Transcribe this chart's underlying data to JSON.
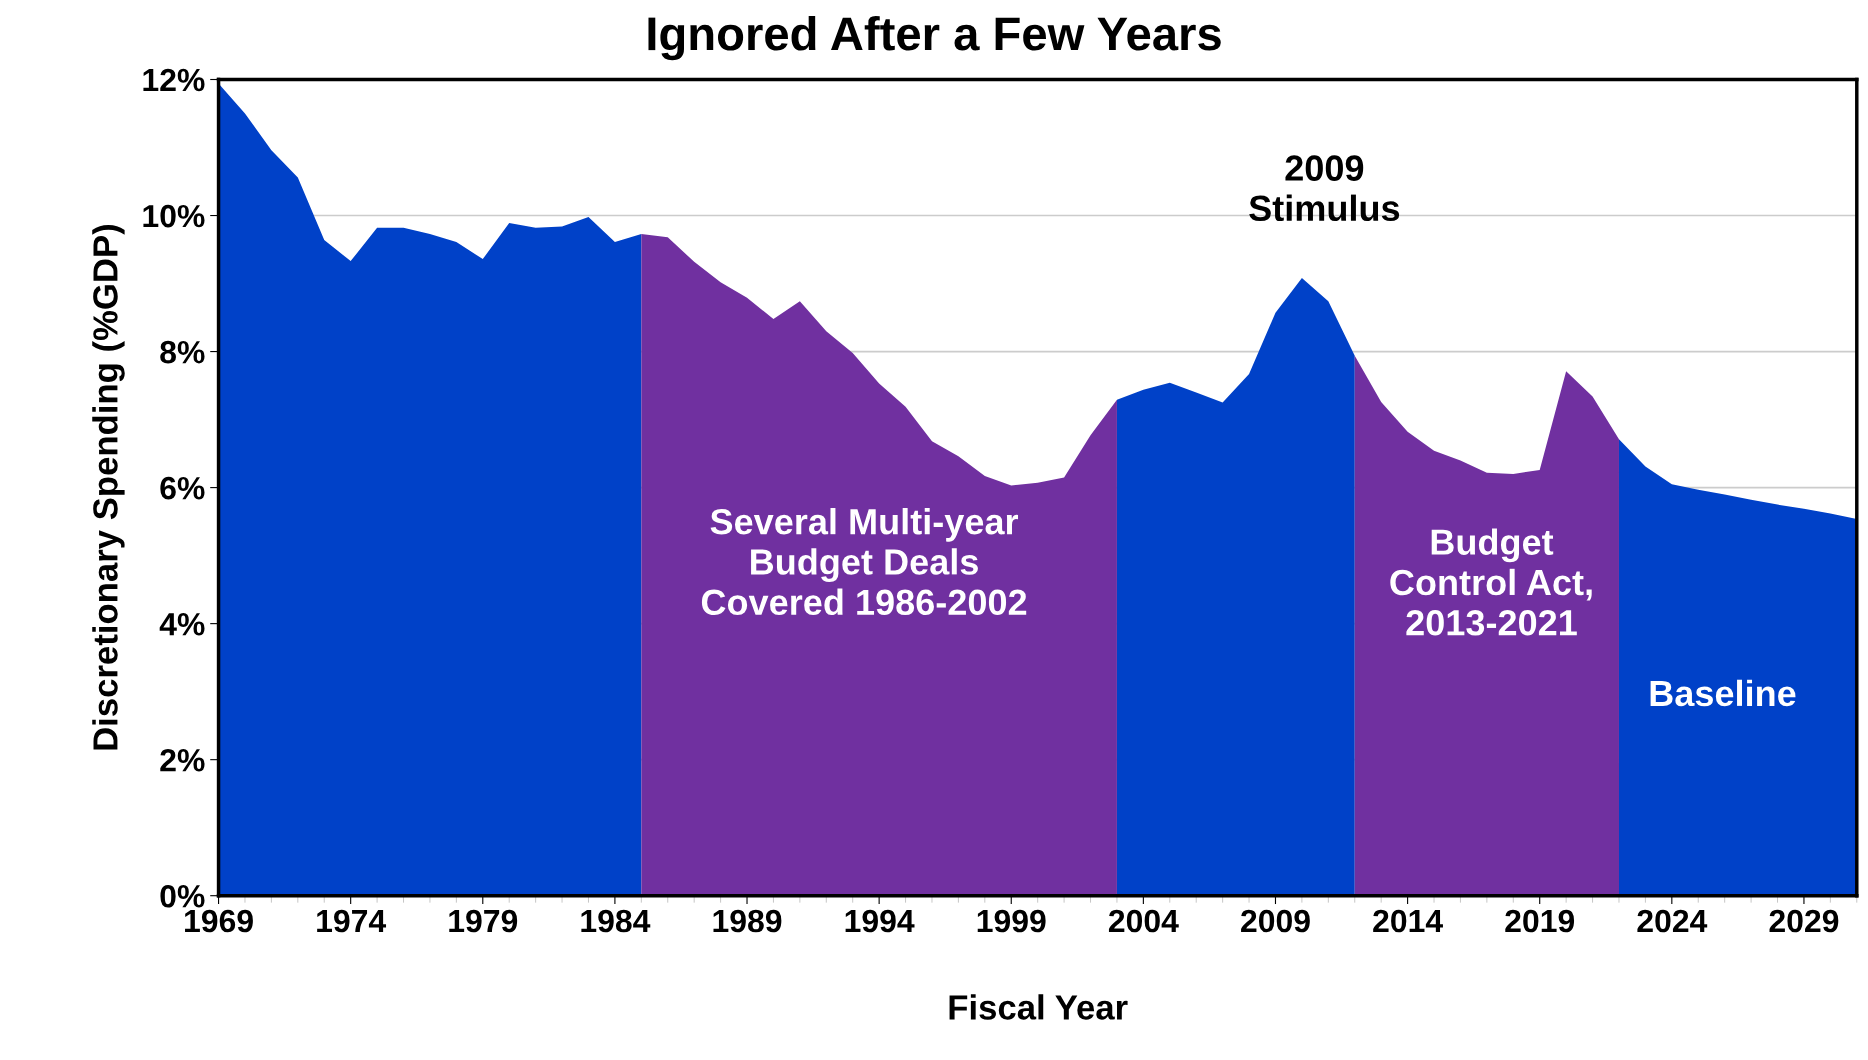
{
  "chart_data": {
    "type": "area",
    "title": "Ignored After a Few Years",
    "xlabel": "Fiscal Year",
    "ylabel": "Discretionary Spending (%GDP)",
    "x": [
      1969,
      1970,
      1971,
      1972,
      1973,
      1974,
      1975,
      1976,
      1977,
      1978,
      1979,
      1980,
      1981,
      1982,
      1983,
      1984,
      1985,
      1986,
      1987,
      1988,
      1989,
      1990,
      1991,
      1992,
      1993,
      1994,
      1995,
      1996,
      1997,
      1998,
      1999,
      2000,
      2001,
      2002,
      2003,
      2004,
      2005,
      2006,
      2007,
      2008,
      2009,
      2010,
      2011,
      2012,
      2013,
      2014,
      2015,
      2016,
      2017,
      2018,
      2019,
      2020,
      2021,
      2022,
      2023,
      2024,
      2025,
      2026,
      2027,
      2028,
      2029,
      2030,
      2031
    ],
    "series": [
      {
        "color": "#0041c8",
        "values": [
          11.94,
          11.5,
          10.96,
          10.56,
          9.64,
          9.33,
          9.82,
          9.82,
          9.73,
          9.61,
          9.36,
          9.89,
          9.82,
          9.84,
          9.98,
          9.61,
          9.73,
          null,
          null,
          null,
          null,
          null,
          null,
          null,
          null,
          null,
          null,
          null,
          null,
          null,
          null,
          null,
          null,
          null,
          7.29,
          7.44,
          7.54,
          7.4,
          7.25,
          7.67,
          8.57,
          9.08,
          8.74,
          7.94,
          null,
          null,
          null,
          null,
          null,
          null,
          null,
          null,
          null,
          6.71,
          6.31,
          6.05,
          5.97,
          5.9,
          5.82,
          5.75,
          5.69,
          5.62,
          5.54
        ]
      },
      {
        "color": "#7030a0",
        "values": [
          null,
          null,
          null,
          null,
          null,
          null,
          null,
          null,
          null,
          null,
          null,
          null,
          null,
          null,
          null,
          null,
          9.73,
          9.68,
          9.32,
          9.02,
          8.79,
          8.48,
          8.74,
          8.3,
          7.98,
          7.53,
          7.19,
          6.68,
          6.46,
          6.17,
          6.03,
          6.07,
          6.15,
          6.77,
          7.29,
          null,
          null,
          null,
          null,
          null,
          null,
          null,
          null,
          7.94,
          7.26,
          6.82,
          6.54,
          6.4,
          6.22,
          6.2,
          6.26,
          7.71,
          7.34,
          6.71,
          null,
          null,
          null,
          null,
          null,
          null,
          null,
          null,
          null
        ]
      }
    ],
    "xlim": [
      1969,
      2031
    ],
    "xticks": [
      1969,
      1974,
      1979,
      1984,
      1989,
      1994,
      1999,
      2004,
      2009,
      2014,
      2019,
      2024,
      2029
    ],
    "ylim": [
      0,
      12
    ],
    "yticks": [
      {
        "value": 0,
        "label": "0%"
      },
      {
        "value": 2,
        "label": "2%"
      },
      {
        "value": 4,
        "label": "4%"
      },
      {
        "value": 6,
        "label": "6%"
      },
      {
        "value": 8,
        "label": "8%"
      },
      {
        "value": 10,
        "label": "10%"
      },
      {
        "value": 12,
        "label": "12%"
      }
    ],
    "grid": "y",
    "annotations": [
      "2009\nStimulus",
      "Several Multi-year\nBudget Deals\nCovered 1986-2002",
      "Budget\nControl Act,\n2013-2021",
      "Baseline"
    ]
  }
}
